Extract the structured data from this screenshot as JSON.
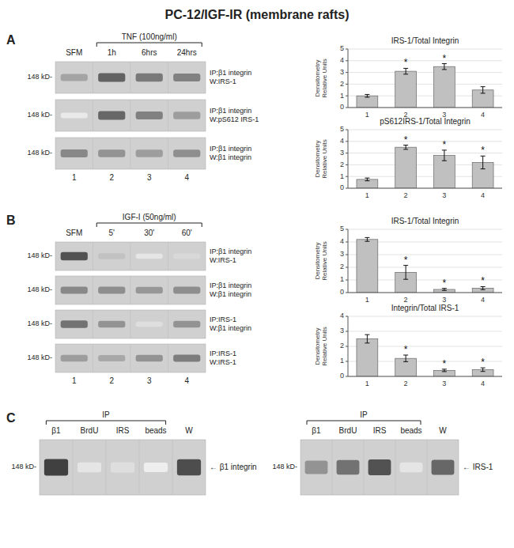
{
  "title": "PC-12/IGF-IR (membrane rafts)",
  "chart_data": [
    {
      "type": "blot",
      "subtitle": "A",
      "categories": [
        "SFM",
        "1h",
        "6hrs",
        "24hrs"
      ],
      "annotations": [
        "TNF (100ng/ml)"
      ],
      "ylabel": "148 kD-",
      "xticks": [
        1,
        2,
        3,
        4
      ],
      "series": [
        {
          "name": "IP:β1 integrin\nW:IRS-1",
          "values": [
            0.42,
            0.72,
            0.62,
            0.58
          ]
        },
        {
          "name": "IP:β1 integrin\nW:pS612 IRS-1",
          "values": [
            0.1,
            0.7,
            0.58,
            0.45
          ]
        },
        {
          "name": "IP:β1 integrin\nW:β1 integrin",
          "values": [
            0.55,
            0.5,
            0.45,
            0.52
          ]
        }
      ]
    },
    {
      "type": "bar",
      "title": "IRS-1/Total Integrin",
      "categories": [
        "1",
        "2",
        "3",
        "4"
      ],
      "values": [
        1.0,
        3.1,
        3.5,
        1.5
      ],
      "errors": [
        0.12,
        0.25,
        0.25,
        0.28
      ],
      "annotations": [
        null,
        "*",
        "*",
        null
      ],
      "ylim": [
        0,
        5
      ],
      "yticks": [
        0,
        1,
        2,
        3,
        4,
        5
      ],
      "ylabel": "Densitometry\nRelative Units",
      "grid": true,
      "color": "#c0c0c0"
    },
    {
      "type": "bar",
      "title": "pS612IRS-1/Total Integrin",
      "categories": [
        "1",
        "2",
        "3",
        "4"
      ],
      "values": [
        0.75,
        3.5,
        2.8,
        2.2
      ],
      "errors": [
        0.12,
        0.18,
        0.45,
        0.55
      ],
      "annotations": [
        null,
        "*",
        "*",
        "*"
      ],
      "ylim": [
        0,
        5
      ],
      "yticks": [
        0,
        1,
        2,
        3,
        4,
        5
      ],
      "ylabel": "Densitometry\nRelative Units",
      "grid": true,
      "color": "#c0c0c0"
    },
    {
      "type": "blot",
      "subtitle": "B",
      "categories": [
        "SFM",
        "5'",
        "30'",
        "60'"
      ],
      "annotations": [
        "IGF-I (50ng/ml)"
      ],
      "ylabel": "148 kD-",
      "xticks": [
        1,
        2,
        3,
        4
      ],
      "series": [
        {
          "name": "IP:β1 integrin\nW:IRS-1",
          "values": [
            0.8,
            0.28,
            0.12,
            0.18
          ]
        },
        {
          "name": "IP:β1 integrin\nW:β1 integrin",
          "values": [
            0.55,
            0.52,
            0.48,
            0.52
          ]
        },
        {
          "name": "IP:IRS-1\nW:β1 integrin",
          "values": [
            0.65,
            0.5,
            0.15,
            0.5
          ]
        },
        {
          "name": "IP:IRS-1\nW:IRS-1",
          "values": [
            0.45,
            0.4,
            0.5,
            0.6
          ]
        }
      ]
    },
    {
      "type": "bar",
      "title": "IRS-1/Total Integrin",
      "categories": [
        "1",
        "2",
        "3",
        "4"
      ],
      "values": [
        4.2,
        1.6,
        0.25,
        0.35
      ],
      "errors": [
        0.15,
        0.55,
        0.08,
        0.12
      ],
      "annotations": [
        null,
        "*",
        "*",
        "*"
      ],
      "ylim": [
        0,
        5
      ],
      "yticks": [
        0,
        1,
        2,
        3,
        4,
        5
      ],
      "ylabel": "Densitometry\nRelative Units",
      "grid": true,
      "color": "#c0c0c0"
    },
    {
      "type": "bar",
      "title": "Integrin/Total IRS-1",
      "categories": [
        "1",
        "2",
        "3",
        "4"
      ],
      "values": [
        2.5,
        1.2,
        0.4,
        0.45
      ],
      "errors": [
        0.28,
        0.22,
        0.08,
        0.12
      ],
      "annotations": [
        null,
        "*",
        "*",
        "*"
      ],
      "ylim": [
        0,
        4
      ],
      "yticks": [
        0,
        1,
        2,
        3,
        4
      ],
      "ylabel": "Densitometry\nRelative Units",
      "grid": true,
      "color": "#c0c0c0"
    },
    {
      "type": "blot",
      "subtitle": "C",
      "categories": [
        "β1",
        "BrdU",
        "IRS",
        "beads",
        "W"
      ],
      "annotations": [
        "IP"
      ],
      "ylabel": "148 kD-",
      "tick_labels": false,
      "series": [
        {
          "name": "← β1 integrin",
          "values": [
            0.88,
            0.12,
            0.15,
            0.08,
            0.82
          ]
        }
      ]
    },
    {
      "type": "blot",
      "categories": [
        "β1",
        "BrdU",
        "IRS",
        "beads",
        "W"
      ],
      "annotations": [
        "IP"
      ],
      "ylabel": "148 kD-",
      "tick_labels": false,
      "series": [
        {
          "name": "← IRS-1",
          "values": [
            0.5,
            0.65,
            0.8,
            0.12,
            0.7
          ]
        }
      ]
    }
  ]
}
